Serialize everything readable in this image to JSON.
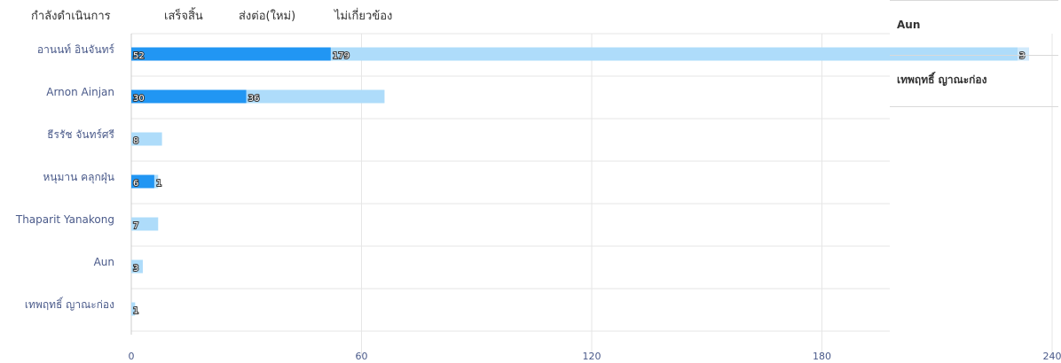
{
  "chart_data": {
    "type": "bar",
    "orientation": "horizontal",
    "stacked": true,
    "categories": [
      "อานนท์ อินจันทร์",
      "Arnon Ainjan",
      "ธีรรัช จันทร์ศรี",
      "หนุมาน คลุกฝุ่น",
      "Thaparit Yanakong",
      "Aun",
      "เทพฤทธิ์ ญาณะก่อง"
    ],
    "series": [
      {
        "name": "กำลังดำเนินการ",
        "color": "#42a5f5",
        "values": [
          0,
          0,
          0,
          0,
          0,
          0,
          0
        ]
      },
      {
        "name": "เสร็จสิ้น",
        "color": "#2196f3",
        "values": [
          52,
          30,
          0,
          6,
          0,
          0,
          0
        ]
      },
      {
        "name": "ส่งต่อ(ใหม่)",
        "color": "#aedcfa",
        "values": [
          179,
          36,
          8,
          1,
          7,
          3,
          1
        ]
      },
      {
        "name": "ไม่เกี่ยวข้อง",
        "color": "#d0e9fb",
        "values": [
          3,
          0,
          0,
          0,
          0,
          0,
          0
        ]
      }
    ],
    "xlim": [
      0,
      240
    ],
    "xticks": [
      "0",
      "60",
      "120",
      "180",
      "240"
    ],
    "legend": "top",
    "grid": true
  },
  "side_panel": {
    "items": [
      "Aun",
      "เทพฤทธิ์ ญาณะก่อง"
    ]
  }
}
